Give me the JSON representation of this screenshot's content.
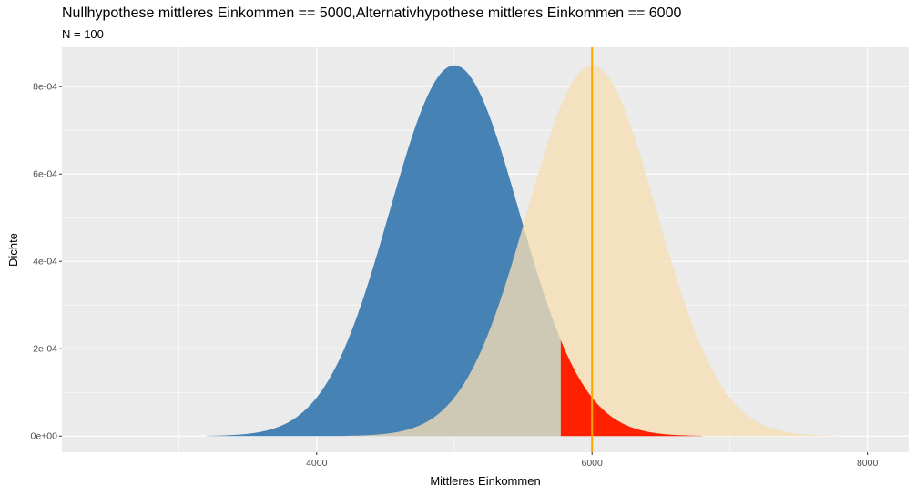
{
  "chart_data": {
    "type": "area",
    "title": "Nullhypothese mittleres Einkommen == 5000,Alternativhypothese mittleres Einkommen == 6000",
    "subtitle": "N = 100",
    "xlabel": "Mittleres Einkommen",
    "ylabel": "Dichte",
    "xlim": [
      2150,
      8300
    ],
    "ylim": [
      -3.7e-05,
      0.00089
    ],
    "x_ticks": [
      4000,
      6000,
      8000
    ],
    "x_tick_labels": [
      "4000",
      "6000",
      "8000"
    ],
    "y_ticks": [
      0,
      0.0002,
      0.0004,
      0.0006,
      0.0008
    ],
    "y_tick_labels": [
      "0e+00",
      "2e-04",
      "4e-04",
      "6e-04",
      "8e-04"
    ],
    "grid": true,
    "series": [
      {
        "distribution": "normal",
        "mean": 5000,
        "sd": 470,
        "x_range": [
          3200,
          6800
        ],
        "color": "#4682B4"
      },
      {
        "distribution": "normal",
        "mean": 6000,
        "sd": 470,
        "x_range": [
          4200,
          7800
        ],
        "color": "#F5DEB3",
        "opacity": 0.78
      },
      {
        "distribution": "normal",
        "mean": 5000,
        "sd": 470,
        "x_range": [
          5773,
          6800
        ],
        "color": "#FF2000"
      }
    ],
    "vline": {
      "x": 6000,
      "color": "#FFA500"
    }
  }
}
